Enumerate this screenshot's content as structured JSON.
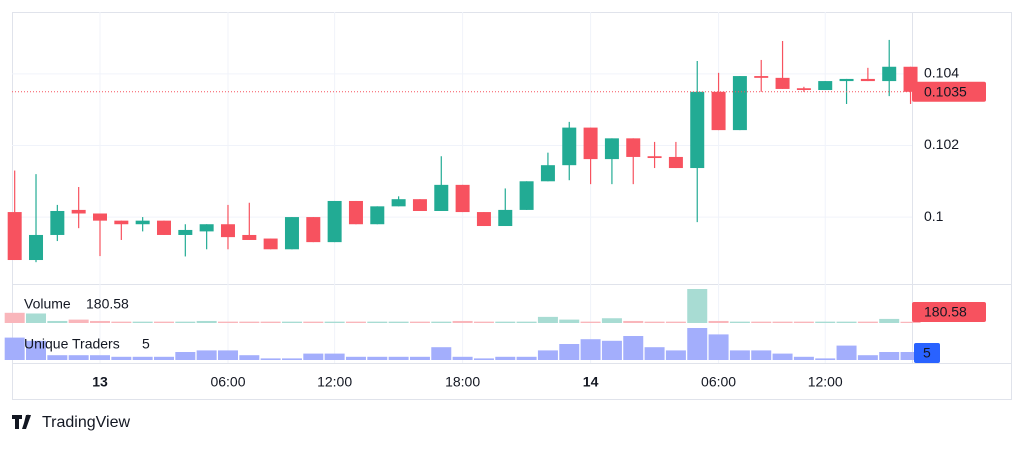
{
  "chart_data": {
    "type": "candlestick",
    "categories": [
      null,
      null,
      null,
      null,
      "13",
      null,
      null,
      null,
      null,
      null,
      "06:00",
      null,
      null,
      null,
      null,
      "12:00",
      null,
      null,
      null,
      null,
      null,
      "18:00",
      null,
      null,
      null,
      null,
      null,
      "14",
      null,
      null,
      null,
      null,
      null,
      "06:00",
      null,
      null,
      null,
      null,
      "12:00",
      null,
      null,
      null,
      null
    ],
    "open": [
      0.10014,
      0.0988,
      0.0995,
      0.1002,
      0.1001,
      0.0999,
      0.0998,
      0.0999,
      0.0995,
      0.0996,
      0.0998,
      0.0995,
      0.0994,
      0.0991,
      0.1,
      0.0993,
      0.10045,
      0.0998,
      0.1003,
      0.1005,
      0.10017,
      0.1009,
      0.10014,
      0.09975,
      0.1002,
      0.101,
      0.10145,
      0.1025,
      0.10162,
      0.1022,
      0.1017,
      0.10168,
      0.10137,
      0.1035,
      0.10243,
      0.10394,
      0.10389,
      0.1036,
      0.10355,
      0.1038,
      0.10386,
      0.1038,
      0.1042
    ],
    "high": [
      0.1013,
      0.1012,
      0.10034,
      0.10084,
      0.1001,
      0.0999,
      0.1,
      0.0999,
      0.0998,
      0.0998,
      0.10034,
      0.1004,
      0.0994,
      0.1,
      0.1,
      0.10045,
      0.10045,
      0.1003,
      0.10058,
      0.1005,
      0.1017,
      0.1009,
      0.10014,
      0.1008,
      0.101,
      0.1018,
      0.10266,
      0.1025,
      0.1022,
      0.1022,
      0.1021,
      0.1021,
      0.10436,
      0.10403,
      0.10394,
      0.10439,
      0.10492,
      0.10364,
      0.1038,
      0.10386,
      0.10417,
      0.10495,
      0.1042
    ],
    "low": [
      0.0988,
      0.09874,
      0.09933,
      0.09969,
      0.09891,
      0.09936,
      0.0996,
      0.0995,
      0.0989,
      0.0991,
      0.0991,
      0.09936,
      0.0991,
      0.0991,
      0.0993,
      0.0993,
      0.0998,
      0.0998,
      0.1003,
      0.10017,
      0.10017,
      0.10014,
      0.09975,
      0.09975,
      0.1002,
      0.101,
      0.10103,
      0.10092,
      0.10092,
      0.10092,
      0.10137,
      0.10137,
      0.09986,
      0.10243,
      0.10243,
      0.1035,
      0.10358,
      0.1035,
      0.10355,
      0.10316,
      0.1038,
      0.10338,
      0.10316
    ],
    "close": [
      0.0988,
      0.0995,
      0.10017,
      0.1001,
      0.0999,
      0.0998,
      0.0999,
      0.0995,
      0.09964,
      0.0998,
      0.09944,
      0.09936,
      0.0991,
      0.1,
      0.0993,
      0.10045,
      0.0998,
      0.1003,
      0.1005,
      0.10017,
      0.1009,
      0.10014,
      0.09975,
      0.1002,
      0.101,
      0.10145,
      0.1025,
      0.10162,
      0.1022,
      0.10168,
      0.10165,
      0.10137,
      0.1035,
      0.10243,
      0.10394,
      0.10389,
      0.10358,
      0.10355,
      0.1038,
      0.10386,
      0.1038,
      0.1042,
      0.1035
    ],
    "up_color": "#22ab94",
    "down_color": "#f7525f",
    "ylim": [
      0.09813,
      0.10573
    ],
    "yticks": [
      0.1,
      0.102,
      0.104
    ],
    "grid": true,
    "volume": {
      "name": "Volume",
      "up_color": "#a8dcd3",
      "down_color": "#f9b6bb",
      "label_color": "#f7525f",
      "values": [
        1500,
        1400,
        300,
        500,
        300,
        200,
        200,
        200,
        200,
        300,
        200,
        200,
        200,
        200,
        200,
        200,
        200,
        200,
        200,
        200,
        200,
        300,
        200,
        200,
        200,
        900,
        500,
        200,
        700,
        300,
        200,
        200,
        5000,
        300,
        200,
        200,
        200,
        200,
        200,
        200,
        200,
        600,
        180.58
      ]
    },
    "unique_traders": {
      "name": "Unique Traders",
      "color": "#a3aefc",
      "label_color": "#2962ff",
      "values": [
        14,
        12,
        3,
        3,
        3,
        2,
        2,
        2,
        5,
        6,
        6,
        3,
        1,
        1,
        4,
        4,
        2,
        2,
        2,
        2,
        8,
        2,
        1,
        2,
        2,
        6,
        10,
        13,
        12,
        15,
        8,
        6,
        20,
        16,
        6,
        6,
        4,
        2,
        1,
        9,
        3,
        5,
        5
      ]
    }
  },
  "brand": "TradingView"
}
